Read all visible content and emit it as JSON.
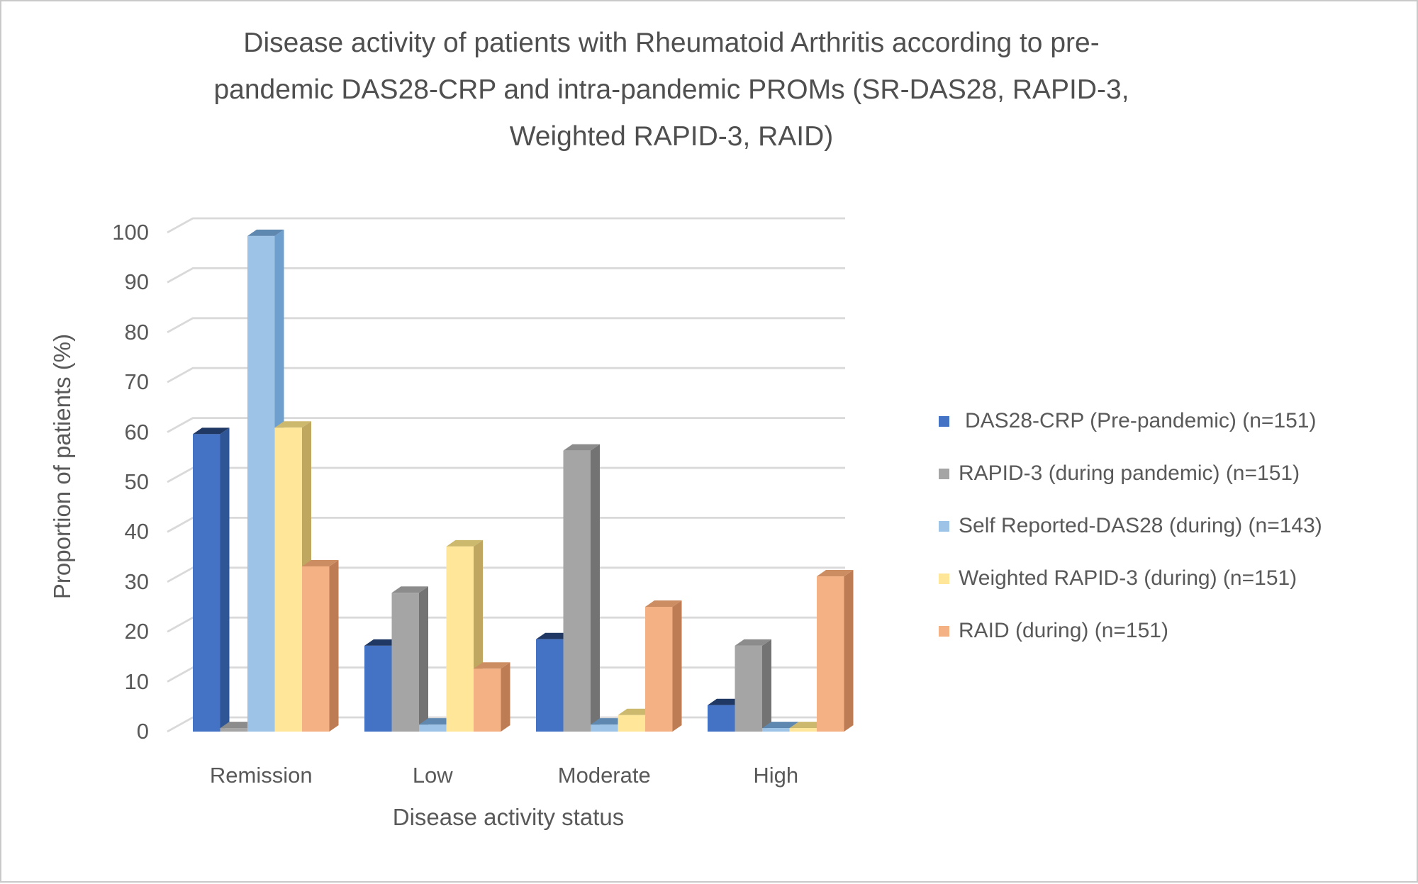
{
  "header": {
    "title_lines": [
      "Disease activity of patients with Rheumatoid Arthritis according to pre-",
      "pandemic DAS28-CRP and intra-pandemic PROMs (SR-DAS28, RAPID-3,",
      "Weighted RAPID-3, RAID)"
    ]
  },
  "y_axis": {
    "title": "Proportion of patients (%)",
    "ticks": [
      0,
      10,
      20,
      30,
      40,
      50,
      60,
      70,
      80,
      90,
      100
    ]
  },
  "x_axis": {
    "title": "Disease activity status"
  },
  "chart_data": {
    "type": "bar",
    "title": "Disease activity of patients with Rheumatoid Arthritis according to pre-pandemic DAS28-CRP and intra-pandemic PROMs (SR-DAS28, RAPID-3, Weighted RAPID-3, RAID)",
    "categories": [
      "Remission",
      "Low",
      "Moderate",
      "High"
    ],
    "series": [
      {
        "name": "DAS28-CRP (Pre-pandemic) (n=151)",
        "color": "#4472C4",
        "side": "#2E5596",
        "top": "#203864",
        "values": [
          59.6,
          17.2,
          18.5,
          5.3
        ]
      },
      {
        "name": "RAPID-3 (during pandemic) (n=151)",
        "color": "#A5A5A5",
        "side": "#737373",
        "top": "#8C8C8C",
        "values": [
          0.7,
          27.8,
          56.3,
          17.2
        ]
      },
      {
        "name": "Self Reported-DAS28 (during) (n=143)",
        "color": "#9DC3E6",
        "side": "#6F9FCC",
        "top": "#5F88B1",
        "values": [
          99.3,
          1.4,
          1.4,
          0.7
        ]
      },
      {
        "name": "Weighted RAPID-3 (during) (n=151)",
        "color": "#FFE699",
        "side": "#BFA75F",
        "top": "#CDB96E",
        "values": [
          60.9,
          37.1,
          3.3,
          0.7
        ]
      },
      {
        "name": "RAID (during) (n=151)",
        "color": "#F4B183",
        "side": "#BE7C54",
        "top": "#CD8D62",
        "values": [
          33.1,
          12.6,
          25.0,
          31.1
        ]
      }
    ],
    "xlabel": "Disease activity status",
    "ylabel": "Proportion of patients (%)",
    "ylim": [
      0,
      100
    ],
    "grid": true,
    "legend_position": "right",
    "style": "3d-clustered-column"
  },
  "colors": {
    "grid": "#D9D9D9",
    "axis_text": "#595959",
    "title_text": "#4F4F4F",
    "background": "#FFFFFF",
    "border": "#C9C9C9"
  }
}
